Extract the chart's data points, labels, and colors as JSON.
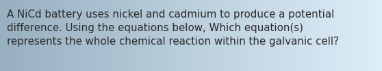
{
  "text": "A NiCd battery uses nickel and cadmium to produce a potential\ndifference. Using the equations below, Which equation(s)\nrepresents the whole chemical reaction within the galvanic cell?",
  "bg_color_left": "#98afc0",
  "bg_color_right": "#ddeef8",
  "text_color": "#2a2a2a",
  "font_size": 10.8,
  "fig_width": 5.58,
  "fig_height": 1.05,
  "dpi": 100
}
